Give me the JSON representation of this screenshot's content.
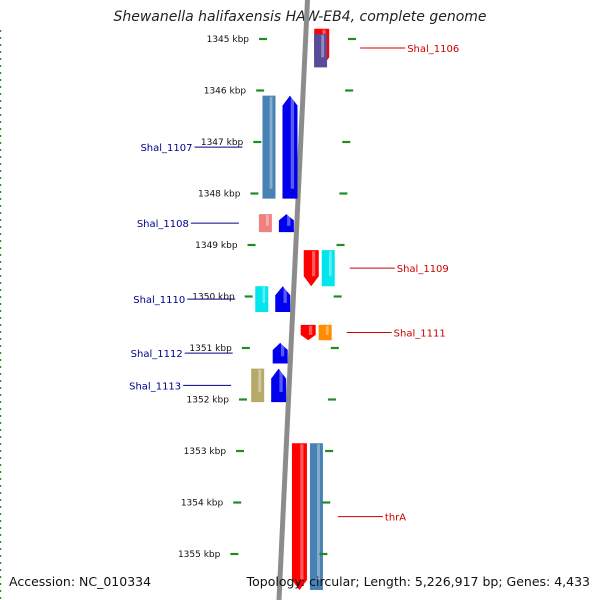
{
  "title": "Shewanella halifaxensis HAW-EB4, complete genome",
  "footer": {
    "accession": "Accession: NC_010334",
    "summary": "Topology: circular; Length: 5,226,917 bp; Genes: 4,433"
  },
  "axis": {
    "unit": "kbp",
    "ticks": [
      "1345 kbp",
      "1346 kbp",
      "1347 kbp",
      "1348 kbp",
      "1349 kbp",
      "1350 kbp",
      "1351 kbp",
      "1352 kbp",
      "1353 kbp",
      "1354 kbp",
      "1355 kbp"
    ],
    "range_kbp": [
      1344.8,
      1355.7
    ]
  },
  "genes": [
    {
      "name": "Shal_1106",
      "strand": "-",
      "start": 1344.8,
      "end": 1345.55,
      "color": "#ff0000",
      "label_side": "right"
    },
    {
      "name": "",
      "strand": "-",
      "start": 1344.9,
      "end": 1345.55,
      "color": "#5a4a9a",
      "label_side": "none"
    },
    {
      "name": "Shal_1107",
      "strand": "+",
      "start": 1346.1,
      "end": 1348.1,
      "color": "#0000ee",
      "label_side": "left"
    },
    {
      "name": "",
      "strand": "+",
      "start": 1346.1,
      "end": 1348.1,
      "color": "#4682b4",
      "label_side": "none"
    },
    {
      "name": "Shal_1108",
      "strand": "+",
      "start": 1348.4,
      "end": 1348.75,
      "color": "#0000ee",
      "label_side": "left"
    },
    {
      "name": "",
      "strand": "+",
      "start": 1348.4,
      "end": 1348.75,
      "color": "#f08080",
      "label_side": "none"
    },
    {
      "name": "Shal_1109",
      "strand": "-",
      "start": 1349.1,
      "end": 1349.8,
      "color": "#ff0000",
      "label_side": "right"
    },
    {
      "name": "",
      "strand": "-",
      "start": 1349.1,
      "end": 1349.8,
      "color": "#00e5ee",
      "label_side": "none"
    },
    {
      "name": "Shal_1110",
      "strand": "+",
      "start": 1349.8,
      "end": 1350.3,
      "color": "#0000ee",
      "label_side": "left"
    },
    {
      "name": "",
      "strand": "+",
      "start": 1349.8,
      "end": 1350.3,
      "color": "#00e5ee",
      "label_side": "none"
    },
    {
      "name": "Shal_1111",
      "strand": "-",
      "start": 1350.55,
      "end": 1350.85,
      "color": "#ff0000",
      "label_side": "right"
    },
    {
      "name": "",
      "strand": "-",
      "start": 1350.55,
      "end": 1350.85,
      "color": "#ff8c00",
      "label_side": "none"
    },
    {
      "name": "Shal_1112",
      "strand": "+",
      "start": 1350.9,
      "end": 1351.3,
      "color": "#0000ee",
      "label_side": "left"
    },
    {
      "name": "Shal_1113",
      "strand": "+",
      "start": 1351.4,
      "end": 1352.05,
      "color": "#0000ee",
      "label_side": "left"
    },
    {
      "name": "",
      "strand": "+",
      "start": 1351.4,
      "end": 1352.05,
      "color": "#b5aa6a",
      "label_side": "none"
    },
    {
      "name": "thrA",
      "strand": "-",
      "start": 1352.85,
      "end": 1355.7,
      "color": "#ff0000",
      "label_side": "right"
    },
    {
      "name": "",
      "strand": "-",
      "start": 1352.85,
      "end": 1355.7,
      "color": "#4682b4",
      "label_side": "none"
    }
  ]
}
